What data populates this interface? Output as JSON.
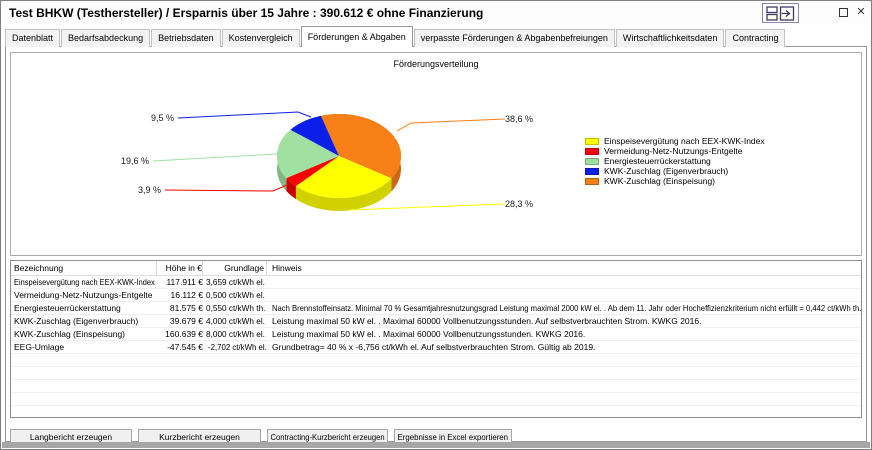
{
  "window": {
    "title": "Test BHKW (Testhersteller) / Ersparnis über 15 Jahre : 390.612 € ohne Finanzierung",
    "controls": [
      {
        "name": "window-layout-icon"
      },
      {
        "name": "maximize-icon"
      },
      {
        "name": "close-icon",
        "glyph": "✕"
      }
    ]
  },
  "tabs": {
    "items": [
      "Datenblatt",
      "Bedarfsabdeckung",
      "Betriebsdaten",
      "Kostenvergleich",
      "Förderungen & Abgaben",
      "verpasste Förderungen & Abgabenbefreiungen",
      "Wirtschaftlichkeitsdaten",
      "Contracting"
    ],
    "active_index": 4
  },
  "chart_data": {
    "type": "pie",
    "style": "3d-pie",
    "title": "Förderungsverteilung",
    "legend_position": "right",
    "slices": [
      {
        "label": "Einspeisevergütung nach EEX-KWK-Index",
        "percent": 28.3,
        "percent_label": "28,3 %",
        "color": "#FFFF00"
      },
      {
        "label": "Vermeidung-Netz-Nutzungs-Entgelte",
        "percent": 3.9,
        "percent_label": "3,9 %",
        "color": "#F80000"
      },
      {
        "label": "Energiesteuerrückerstattung",
        "percent": 19.6,
        "percent_label": "19,6 %",
        "color": "#A0E0A0"
      },
      {
        "label": "KWK-Zuschlag (Eigenverbrauch)",
        "percent": 9.5,
        "percent_label": "9,5 %",
        "color": "#0A20E8"
      },
      {
        "label": "KWK-Zuschlag (Einspeisung)",
        "percent": 38.6,
        "percent_label": "38,6 %",
        "color": "#F88017"
      }
    ]
  },
  "table": {
    "columns": [
      "Bezeichnung",
      "Höhe in €",
      "Grundlage",
      "Hinweis"
    ],
    "rows": [
      [
        "Einspeisevergütung nach EEX-KWK-Index",
        "117.911 €",
        "3,659 ct/kWh el.",
        ""
      ],
      [
        "Vermeidung-Netz-Nutzungs-Entgelte",
        "16.112 €",
        "0,500 ct/kWh el.",
        ""
      ],
      [
        "Energiesteuerrückerstattung",
        "81.575 €",
        "0,550 ct/kWh th.",
        "Nach Brennstoffeinsatz. Minimal 70 % Gesamtjahresnutzungsgrad Leistung maximal 2000 kW el. . Ab dem 11. Jahr oder Hocheffizienzkriterium nicht erfüllt = 0,442 ct/kWh th."
      ],
      [
        "KWK-Zuschlag (Eigenverbrauch)",
        "39.679 €",
        "4,000 ct/kWh el.",
        "Leistung maximal 50 kW el. . Maximal 60000 Vollbenutzungsstunden. Auf selbstverbrauchten Strom. KWKG 2016."
      ],
      [
        "KWK-Zuschlag (Einspeisung)",
        "160.639 €",
        "8,000 ct/kWh el.",
        "Leistung maximal 50 kW el. . Maximal 60000 Vollbenutzungsstunden. KWKG 2016."
      ],
      [
        "EEG-Umlage",
        "-47.545 €",
        "-2,702 ct/kWh el.",
        "Grundbetrag= 40 % x -6,756 ct/kWh el. Auf selbstverbrauchten Strom. Gültig ab 2019."
      ]
    ],
    "empty_row_count": 5
  },
  "buttons": [
    "Langbericht erzeugen",
    "Kurzbericht erzeugen",
    "Contracting-Kurzbericht erzeugen",
    "Ergebnisse in Excel exportieren"
  ]
}
